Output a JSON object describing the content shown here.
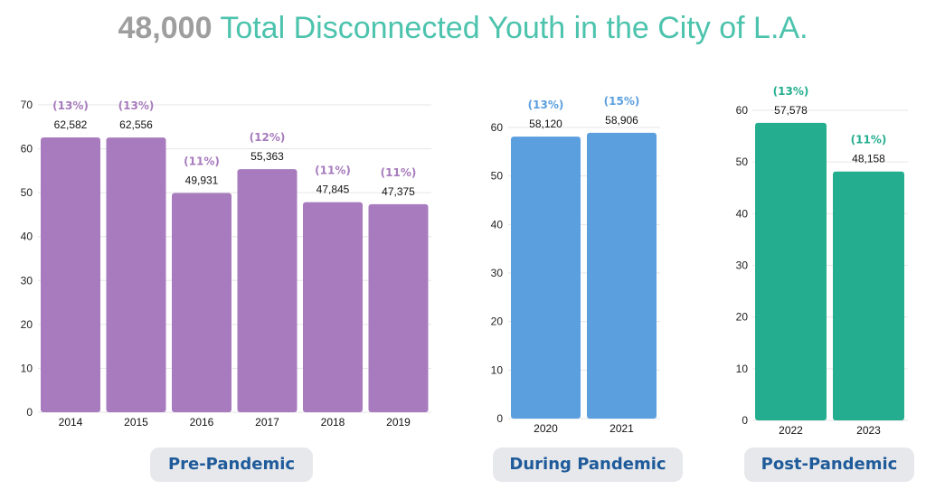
{
  "title": {
    "number": "48,000",
    "rest": "Total Disconnected Youth in the City of L.A."
  },
  "colors": {
    "pre": "#a77bbd",
    "during": "#5b9fdf",
    "post": "#24ae8f",
    "grid": "#e6e6e6"
  },
  "chart_data": [
    {
      "type": "bar",
      "title": "Pre-Pandemic",
      "categories": [
        "2014",
        "2015",
        "2016",
        "2017",
        "2018",
        "2019"
      ],
      "values": [
        62582,
        62556,
        49931,
        55363,
        47845,
        47375
      ],
      "value_labels": [
        "62,582",
        "62,556",
        "49,931",
        "55,363",
        "47,845",
        "47,375"
      ],
      "percent_labels": [
        "(13%)",
        "(13%)",
        "(11%)",
        "(12%)",
        "(11%)",
        "(11%)"
      ],
      "yticks": [
        "0",
        "10",
        "20",
        "30",
        "40",
        "50",
        "60",
        "70"
      ],
      "ylim": [
        0,
        70
      ],
      "grid": true
    },
    {
      "type": "bar",
      "title": "During Pandemic",
      "categories": [
        "2020",
        "2021"
      ],
      "values": [
        58120,
        58906
      ],
      "value_labels": [
        "58,120",
        "58,906"
      ],
      "percent_labels": [
        "(13%)",
        "(15%)"
      ],
      "yticks": [
        "0",
        "10",
        "20",
        "30",
        "40",
        "50",
        "60"
      ],
      "ylim": [
        0,
        60
      ],
      "grid": true
    },
    {
      "type": "bar",
      "title": "Post-Pandemic",
      "categories": [
        "2022",
        "2023"
      ],
      "values": [
        57578,
        48158
      ],
      "value_labels": [
        "57,578",
        "48,158"
      ],
      "percent_labels": [
        "(13%)",
        "(11%)"
      ],
      "yticks": [
        "0",
        "10",
        "20",
        "30",
        "40",
        "50",
        "60"
      ],
      "ylim": [
        0,
        60
      ],
      "grid": true
    }
  ]
}
